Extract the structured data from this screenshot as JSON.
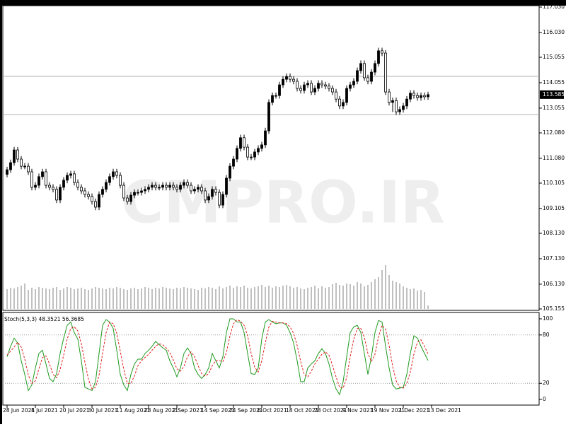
{
  "chart_data": [
    {
      "type": "candlestick",
      "watermark": "CMPRO.IR",
      "ylim": [
        105.155,
        117.03
      ],
      "yticks": [
        {
          "value": 117.03,
          "label": "117.030"
        },
        {
          "value": 116.03,
          "label": "116.030"
        },
        115.055,
        114.055,
        113.055,
        {
          "value": 112.08,
          "label": "112.080"
        },
        {
          "value": 111.08,
          "label": "111.080"
        },
        110.105,
        109.105,
        {
          "value": 108.13,
          "label": "108.130"
        },
        {
          "value": 107.13,
          "label": "107.130"
        },
        {
          "value": 106.13,
          "label": "106.130"
        },
        105.155
      ],
      "current_price": 113.585,
      "levels": [
        114.305,
        112.8
      ],
      "xticks": [
        {
          "value": 0,
          "label": "28 Jun 2021"
        },
        {
          "value": 8,
          "label": "8 Jul 2021"
        },
        {
          "value": 16,
          "label": "20 Jul 2021"
        },
        {
          "value": 24,
          "label": "30 Jul 2021"
        },
        {
          "value": 32,
          "label": "11 Aug 2021"
        },
        {
          "value": 40,
          "label": "23 Aug 2021"
        },
        {
          "value": 48,
          "label": "2 Sep 2021"
        },
        {
          "value": 56,
          "label": "14 Sep 2021"
        },
        {
          "value": 64,
          "label": "24 Sep 2021"
        },
        {
          "value": 72,
          "label": "6 Oct 2021"
        },
        {
          "value": 80,
          "label": "18 Oct 2021"
        },
        {
          "value": 88,
          "label": "28 Oct 2021"
        },
        {
          "value": 96,
          "label": "9 Nov 2021"
        },
        {
          "value": 104,
          "label": "19 Nov 2021"
        },
        {
          "value": 112,
          "label": "1 Dec 2021"
        },
        {
          "value": 120,
          "label": "13 Dec 2021"
        }
      ],
      "open": [
        110.45,
        110.63,
        110.91,
        111.41,
        111.05,
        110.77,
        110.77,
        110.55,
        109.94,
        110.02,
        110.36,
        110.55,
        110.02,
        109.94,
        109.86,
        109.44,
        109.94,
        110.22,
        110.41,
        110.47,
        110.13,
        109.94,
        109.8,
        109.66,
        109.58,
        109.38,
        109.16,
        109.66,
        109.86,
        110.13,
        110.36,
        110.55,
        110.41,
        110.02,
        109.52,
        109.38,
        109.63,
        109.74,
        109.74,
        109.8,
        109.86,
        109.94,
        110.02,
        109.94,
        109.94,
        110.02,
        109.94,
        110.02,
        109.94,
        109.86,
        110.02,
        110.13,
        110.02,
        109.8,
        109.86,
        109.94,
        109.8,
        109.44,
        109.58,
        109.86,
        109.74,
        109.24,
        109.66,
        110.3,
        110.77,
        111.05,
        111.47,
        111.89,
        111.52,
        111.13,
        111.13,
        111.33,
        111.47,
        111.61,
        112.16,
        113.28,
        113.55,
        113.55,
        113.97,
        114.19,
        114.3,
        114.19,
        114.11,
        113.83,
        113.75,
        113.97,
        114.03,
        113.69,
        113.83,
        114.03,
        113.97,
        113.92,
        113.83,
        113.69,
        113.41,
        113.14,
        113.28,
        113.83,
        113.97,
        114.11,
        114.53,
        114.81,
        114.25,
        114.11,
        114.47,
        114.81,
        115.31,
        115.22,
        113.69,
        113.28,
        113.35,
        112.91,
        113.0,
        113.14,
        113.41,
        113.64,
        113.55,
        113.47,
        113.55,
        113.5
      ],
      "high": [
        110.75,
        111.03,
        111.53,
        111.53,
        111.17,
        110.89,
        110.89,
        110.67,
        110.14,
        110.48,
        110.67,
        110.67,
        110.14,
        110.06,
        109.98,
        110.06,
        110.34,
        110.53,
        110.59,
        110.59,
        110.25,
        110.06,
        109.92,
        109.78,
        109.7,
        109.5,
        109.78,
        109.98,
        110.25,
        110.48,
        110.67,
        110.67,
        110.53,
        110.14,
        109.64,
        109.75,
        109.86,
        109.86,
        109.92,
        109.98,
        110.06,
        110.14,
        110.14,
        110.06,
        110.14,
        110.14,
        110.14,
        110.14,
        110.06,
        110.14,
        110.25,
        110.25,
        110.14,
        109.98,
        110.06,
        110.06,
        109.92,
        109.7,
        109.98,
        109.98,
        109.86,
        109.78,
        110.42,
        110.89,
        111.17,
        111.59,
        112.01,
        112.01,
        111.64,
        111.25,
        111.45,
        111.59,
        111.73,
        112.28,
        113.4,
        113.67,
        113.67,
        114.09,
        114.31,
        114.42,
        114.42,
        114.31,
        114.23,
        113.95,
        114.09,
        114.15,
        114.15,
        113.95,
        114.15,
        114.15,
        114.09,
        114.04,
        113.95,
        113.81,
        113.53,
        113.4,
        113.95,
        114.09,
        114.23,
        114.65,
        114.93,
        114.93,
        114.37,
        114.59,
        114.93,
        115.43,
        115.43,
        115.34,
        113.81,
        113.47,
        113.47,
        113.12,
        113.26,
        113.53,
        113.76,
        113.76,
        113.67,
        113.67,
        113.67,
        113.7
      ],
      "low": [
        110.33,
        110.51,
        110.79,
        110.93,
        110.65,
        110.65,
        110.43,
        109.82,
        109.82,
        109.9,
        110.24,
        109.9,
        109.82,
        109.74,
        109.32,
        109.32,
        109.82,
        110.1,
        110.29,
        110.01,
        109.82,
        109.68,
        109.54,
        109.46,
        109.26,
        109.04,
        109.04,
        109.54,
        109.74,
        110.01,
        110.24,
        110.29,
        109.9,
        109.4,
        109.26,
        109.26,
        109.51,
        109.62,
        109.62,
        109.68,
        109.74,
        109.82,
        109.82,
        109.82,
        109.82,
        109.82,
        109.82,
        109.82,
        109.74,
        109.74,
        109.9,
        109.9,
        109.68,
        109.68,
        109.74,
        109.68,
        109.32,
        109.32,
        109.46,
        109.62,
        109.12,
        109.12,
        109.54,
        110.18,
        110.65,
        110.93,
        111.35,
        111.4,
        111.01,
        111.01,
        111.01,
        111.21,
        111.35,
        111.49,
        112.04,
        113.16,
        113.43,
        113.43,
        113.85,
        114.07,
        114.07,
        113.99,
        113.71,
        113.63,
        113.63,
        113.85,
        113.57,
        113.57,
        113.71,
        113.85,
        113.8,
        113.71,
        113.57,
        113.29,
        113.02,
        113.02,
        113.16,
        113.71,
        113.85,
        113.99,
        114.41,
        114.13,
        113.99,
        113.99,
        114.35,
        114.69,
        115.1,
        113.57,
        113.16,
        112.9,
        112.79,
        112.79,
        112.88,
        113.02,
        113.29,
        113.43,
        113.35,
        113.35,
        113.38,
        113.38
      ],
      "close": [
        110.63,
        110.91,
        111.41,
        111.05,
        110.77,
        110.77,
        110.55,
        109.94,
        110.02,
        110.36,
        110.55,
        110.02,
        109.94,
        109.86,
        109.44,
        109.94,
        110.22,
        110.41,
        110.47,
        110.13,
        109.94,
        109.8,
        109.66,
        109.58,
        109.38,
        109.16,
        109.66,
        109.86,
        110.13,
        110.36,
        110.55,
        110.41,
        110.02,
        109.52,
        109.38,
        109.63,
        109.74,
        109.74,
        109.8,
        109.86,
        109.94,
        110.02,
        109.94,
        109.94,
        110.02,
        109.94,
        110.02,
        109.94,
        109.86,
        110.02,
        110.13,
        110.02,
        109.8,
        109.86,
        109.94,
        109.8,
        109.44,
        109.58,
        109.86,
        109.74,
        109.24,
        109.66,
        110.3,
        110.77,
        111.05,
        111.47,
        111.89,
        111.52,
        111.13,
        111.13,
        111.33,
        111.47,
        111.61,
        112.16,
        113.28,
        113.55,
        113.55,
        113.97,
        114.19,
        114.3,
        114.19,
        114.11,
        113.83,
        113.75,
        113.97,
        114.03,
        113.69,
        113.83,
        114.03,
        113.97,
        113.92,
        113.83,
        113.69,
        113.41,
        113.14,
        113.28,
        113.83,
        113.97,
        114.11,
        114.53,
        114.81,
        114.25,
        114.11,
        114.47,
        114.81,
        115.31,
        115.22,
        113.69,
        113.28,
        113.35,
        112.91,
        113.0,
        113.14,
        113.41,
        113.64,
        113.55,
        113.47,
        113.55,
        113.5,
        113.585
      ],
      "volume": [
        28,
        30,
        29,
        31,
        33,
        36,
        27,
        30,
        28,
        31,
        30,
        29,
        28,
        30,
        31,
        27,
        29,
        31,
        30,
        28,
        29,
        30,
        28,
        27,
        29,
        31,
        30,
        29,
        28,
        30,
        29,
        31,
        30,
        28,
        27,
        29,
        30,
        28,
        29,
        31,
        30,
        28,
        30,
        29,
        31,
        30,
        29,
        28,
        30,
        29,
        31,
        30,
        29,
        28,
        27,
        30,
        29,
        31,
        30,
        28,
        32,
        29,
        31,
        33,
        30,
        32,
        31,
        33,
        30,
        29,
        31,
        32,
        34,
        31,
        33,
        30,
        32,
        31,
        33,
        34,
        32,
        30,
        31,
        29,
        28,
        30,
        31,
        33,
        29,
        32,
        30,
        31,
        35,
        37,
        34,
        33,
        36,
        35,
        33,
        38,
        36,
        32,
        34,
        38,
        42,
        45,
        55,
        62,
        48,
        40,
        38,
        36,
        32,
        30,
        28,
        29,
        26,
        27,
        24,
        5
      ]
    },
    {
      "type": "line",
      "title": "Stoch(5,3,3) 48.3521 56.3685",
      "ylim": [
        0,
        100
      ],
      "yticks": [
        0,
        20,
        80,
        100
      ],
      "levels": [
        20,
        80
      ],
      "series": [
        {
          "color": "#1f9a1f",
          "values": [
            53,
            66,
            76,
            70,
            48,
            31,
            11,
            18,
            39,
            57,
            61,
            44,
            26,
            22,
            32,
            57,
            76,
            92,
            96,
            83,
            75,
            48,
            15,
            13,
            11,
            22,
            57,
            92,
            99,
            96,
            88,
            61,
            31,
            18,
            11,
            31,
            44,
            50,
            50,
            57,
            61,
            66,
            72,
            68,
            64,
            61,
            48,
            39,
            28,
            39,
            57,
            64,
            57,
            39,
            31,
            26,
            31,
            39,
            57,
            48,
            39,
            53,
            83,
            100,
            100,
            96,
            96,
            83,
            57,
            32,
            31,
            39,
            75,
            96,
            99,
            96,
            94,
            95,
            95,
            92,
            83,
            70,
            48,
            22,
            22,
            39,
            44,
            48,
            57,
            63,
            57,
            44,
            26,
            13,
            6,
            22,
            53,
            83,
            90,
            92,
            83,
            57,
            31,
            53,
            83,
            98,
            96,
            66,
            39,
            18,
            13,
            14,
            15,
            31,
            57,
            79,
            76,
            66,
            57,
            48.3521
          ]
        },
        {
          "color": "#e02020",
          "dashed": true,
          "values": [
            55,
            60,
            65,
            71,
            65,
            50,
            30,
            20,
            23,
            38,
            52,
            54,
            44,
            31,
            27,
            37,
            55,
            75,
            88,
            90,
            85,
            69,
            46,
            25,
            13,
            15,
            30,
            57,
            83,
            96,
            94,
            82,
            60,
            37,
            20,
            20,
            29,
            42,
            48,
            52,
            56,
            61,
            66,
            69,
            68,
            64,
            58,
            49,
            38,
            35,
            41,
            53,
            59,
            53,
            42,
            32,
            29,
            32,
            42,
            48,
            48,
            47,
            58,
            79,
            94,
            99,
            97,
            92,
            79,
            57,
            40,
            34,
            48,
            70,
            90,
            97,
            96,
            95,
            95,
            94,
            90,
            82,
            67,
            47,
            31,
            28,
            35,
            44,
            50,
            56,
            59,
            55,
            42,
            28,
            15,
            14,
            27,
            53,
            75,
            88,
            88,
            77,
            57,
            47,
            56,
            78,
            92,
            87,
            67,
            41,
            23,
            15,
            14,
            20,
            34,
            56,
            71,
            74,
            66,
            56.3685
          ]
        }
      ]
    }
  ]
}
